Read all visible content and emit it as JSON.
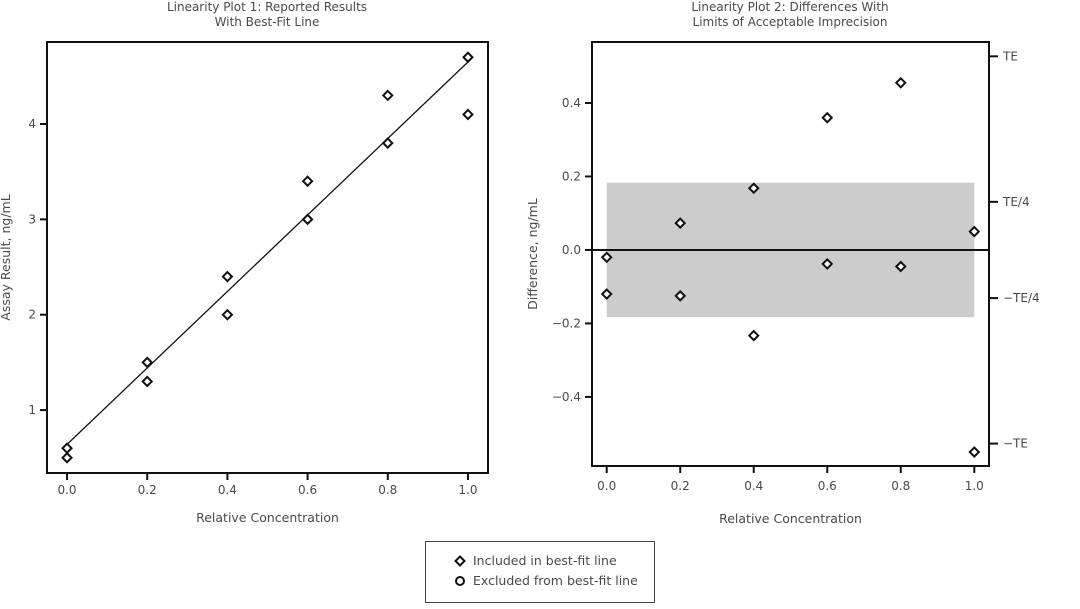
{
  "chart_data": [
    {
      "type": "scatter",
      "title": [
        "Linearity Plot 1: Reported Results",
        "With Best-Fit Line"
      ],
      "xlabel": "Relative Concentration",
      "ylabel": "Assay Result, ng/mL",
      "xlim": [
        -0.05,
        1.05
      ],
      "ylim": [
        0.34,
        4.86
      ],
      "xticks": [
        "0.0",
        "0.2",
        "0.4",
        "0.6",
        "0.8",
        "1.0"
      ],
      "yticks": [
        "1",
        "2",
        "3",
        "4"
      ],
      "grid": false,
      "series": [
        {
          "name": "Included in best-fit line",
          "marker": "diamond",
          "x": [
            0,
            0,
            0.2,
            0.2,
            0.4,
            0.4,
            0.6,
            0.6,
            0.8,
            0.8,
            1.0,
            1.0
          ],
          "y": [
            0.6,
            0.5,
            1.5,
            1.3,
            2.4,
            2.0,
            3.4,
            3.0,
            4.3,
            3.8,
            4.7,
            4.1
          ]
        }
      ],
      "fit_line": {
        "x": [
          0,
          1.0
        ],
        "y": [
          0.64,
          4.65
        ]
      }
    },
    {
      "type": "scatter",
      "title": [
        "Linearity Plot 2: Differences With",
        "Limits of Acceptable Imprecision"
      ],
      "xlabel": "Relative Concentration",
      "ylabel": "Difference, ng/mL",
      "xlim": [
        -0.04,
        1.04
      ],
      "ylim": [
        -0.588,
        0.566
      ],
      "xticks": [
        "0.0",
        "0.2",
        "0.4",
        "0.6",
        "0.8",
        "1.0"
      ],
      "yticks": [
        "−0.4",
        "−0.2",
        "0.0",
        "0.2",
        "0.4"
      ],
      "right_ticks": [
        {
          "label": "TE",
          "value": 0.527
        },
        {
          "label": "TE/4",
          "value": 0.131
        },
        {
          "label": "−TE/4",
          "value": -0.131
        },
        {
          "label": "−TE",
          "value": -0.527
        }
      ],
      "band": {
        "x": [
          0,
          1.0
        ],
        "y": [
          -0.183,
          0.183
        ],
        "color": "#cccccc"
      },
      "zero_line": 0,
      "grid": false,
      "series": [
        {
          "name": "Included in best-fit line",
          "marker": "diamond",
          "x": [
            0,
            0,
            0.2,
            0.2,
            0.4,
            0.4,
            0.6,
            0.6,
            0.8,
            0.8,
            1.0,
            1.0
          ],
          "y": [
            -0.02,
            -0.12,
            0.073,
            -0.125,
            0.168,
            -0.233,
            0.36,
            -0.038,
            0.455,
            -0.045,
            0.05,
            -0.55
          ]
        }
      ]
    }
  ],
  "legend": {
    "placement": "bottom-center",
    "items": [
      {
        "label": "Included in best-fit line",
        "marker": "diamond"
      },
      {
        "label": "Excluded from best-fit line",
        "marker": "circle"
      }
    ]
  }
}
